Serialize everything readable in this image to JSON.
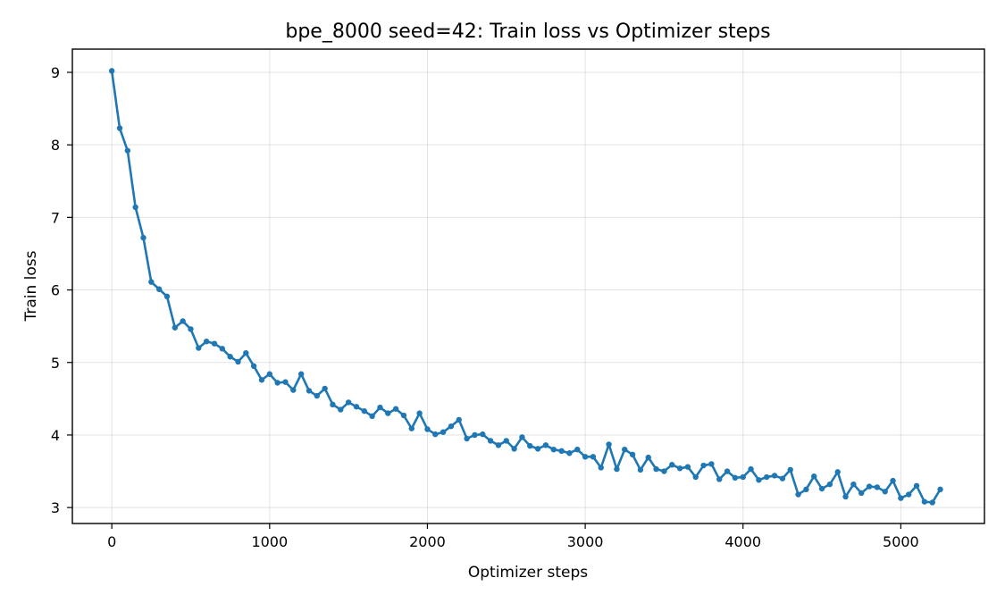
{
  "chart_data": {
    "type": "line",
    "title": "bpe_8000 seed=42: Train loss vs Optimizer steps",
    "xlabel": "Optimizer steps",
    "ylabel": "Train loss",
    "xlim": [
      -250,
      5530
    ],
    "ylim": [
      2.78,
      9.32
    ],
    "xticks": [
      0,
      1000,
      2000,
      3000,
      4000,
      5000
    ],
    "yticks": [
      3,
      4,
      5,
      6,
      7,
      8,
      9
    ],
    "grid": true,
    "legend": "none",
    "marker": "circle",
    "color": "#1f77b4",
    "series": [
      {
        "x": [
          0,
          50,
          100,
          150,
          200,
          250,
          300,
          350,
          400,
          450,
          500,
          550,
          600,
          650,
          700,
          750,
          800,
          850,
          900,
          950,
          1000,
          1050,
          1100,
          1150,
          1200,
          1250,
          1300,
          1350,
          1400,
          1450,
          1500,
          1550,
          1600,
          1650,
          1700,
          1750,
          1800,
          1850,
          1900,
          1950,
          2000,
          2050,
          2100,
          2150,
          2200,
          2250,
          2300,
          2350,
          2400,
          2450,
          2500,
          2550,
          2600,
          2650,
          2700,
          2750,
          2800,
          2850,
          2900,
          2950,
          3000,
          3050,
          3100,
          3150,
          3200,
          3250,
          3300,
          3350,
          3400,
          3450,
          3500,
          3550,
          3600,
          3650,
          3700,
          3750,
          3800,
          3850,
          3900,
          3950,
          4000,
          4050,
          4100,
          4150,
          4200,
          4250,
          4300,
          4350,
          4400,
          4450,
          4500,
          4550,
          4600,
          4650,
          4700,
          4750,
          4800,
          4850,
          4900,
          4950,
          5000,
          5050,
          5100,
          5150,
          5200,
          5250
        ],
        "y": [
          9.02,
          8.23,
          7.92,
          7.14,
          6.72,
          6.11,
          6.01,
          5.91,
          5.48,
          5.57,
          5.46,
          5.2,
          5.29,
          5.26,
          5.19,
          5.08,
          5.01,
          5.13,
          4.95,
          4.76,
          4.84,
          4.72,
          4.73,
          4.62,
          4.84,
          4.61,
          4.54,
          4.64,
          4.42,
          4.35,
          4.45,
          4.39,
          4.33,
          4.26,
          4.38,
          4.3,
          4.36,
          4.27,
          4.09,
          4.3,
          4.08,
          4.01,
          4.04,
          4.12,
          4.21,
          3.95,
          4.0,
          4.01,
          3.92,
          3.86,
          3.92,
          3.81,
          3.97,
          3.85,
          3.81,
          3.86,
          3.8,
          3.78,
          3.75,
          3.8,
          3.7,
          3.7,
          3.55,
          3.87,
          3.53,
          3.8,
          3.73,
          3.52,
          3.69,
          3.53,
          3.5,
          3.59,
          3.54,
          3.56,
          3.42,
          3.58,
          3.6,
          3.39,
          3.5,
          3.41,
          3.42,
          3.53,
          3.38,
          3.42,
          3.44,
          3.4,
          3.52,
          3.18,
          3.25,
          3.43,
          3.26,
          3.32,
          3.49,
          3.15,
          3.32,
          3.2,
          3.29,
          3.28,
          3.22,
          3.37,
          3.13,
          3.18,
          3.3,
          3.08,
          3.07,
          3.25
        ]
      }
    ]
  }
}
